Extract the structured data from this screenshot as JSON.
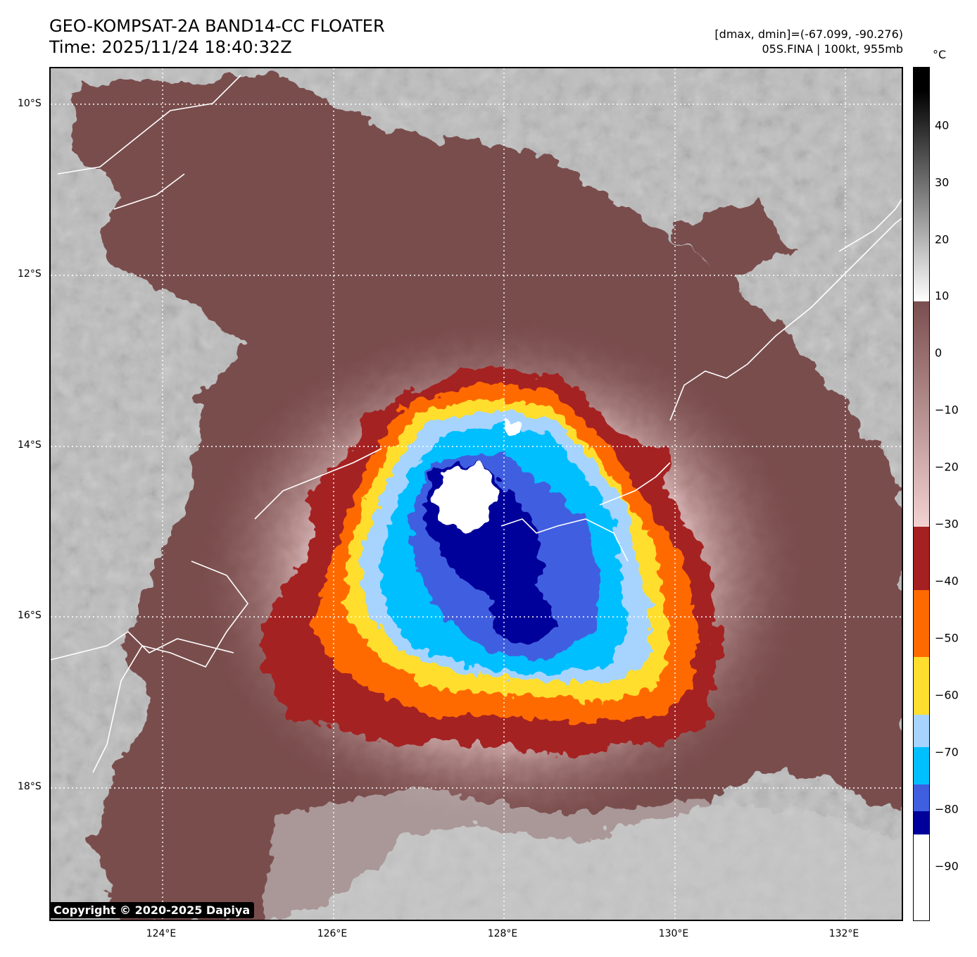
{
  "header": {
    "title_line1": "GEO-KOMPSAT-2A BAND14-CC FLOATER",
    "title_line2": "Time: 2025/11/24 18:40:32Z",
    "dminmax": "[dmax, dmin]=(-67.099, -90.276)",
    "storm": "05S.FINA | 100kt, 955mb"
  },
  "axes": {
    "lon_labels": [
      "124°E",
      "126°E",
      "128°E",
      "130°E",
      "132°E"
    ],
    "lat_labels": [
      "10°S",
      "12°S",
      "14°S",
      "16°S",
      "18°S"
    ]
  },
  "colorbar": {
    "unit": "°C",
    "labels": [
      "40",
      "30",
      "20",
      "10",
      "0",
      "−10",
      "−20",
      "−30",
      "−40",
      "−50",
      "−60",
      "−70",
      "−80",
      "−90"
    ],
    "colors": {
      "black": "#000000",
      "white": "#ffffff",
      "brown_dark": "#7a4e4e",
      "pink_light": "#f3d2d2",
      "red": "#a52020",
      "orange": "#ff6a00",
      "yellow": "#ffde2e",
      "light_blue": "#a6d4ff",
      "cyan": "#00bfff",
      "blue": "#3f5fe0",
      "navy": "#00009a"
    }
  },
  "copyright": "Copyright © 2020-2025 Dapiya"
}
